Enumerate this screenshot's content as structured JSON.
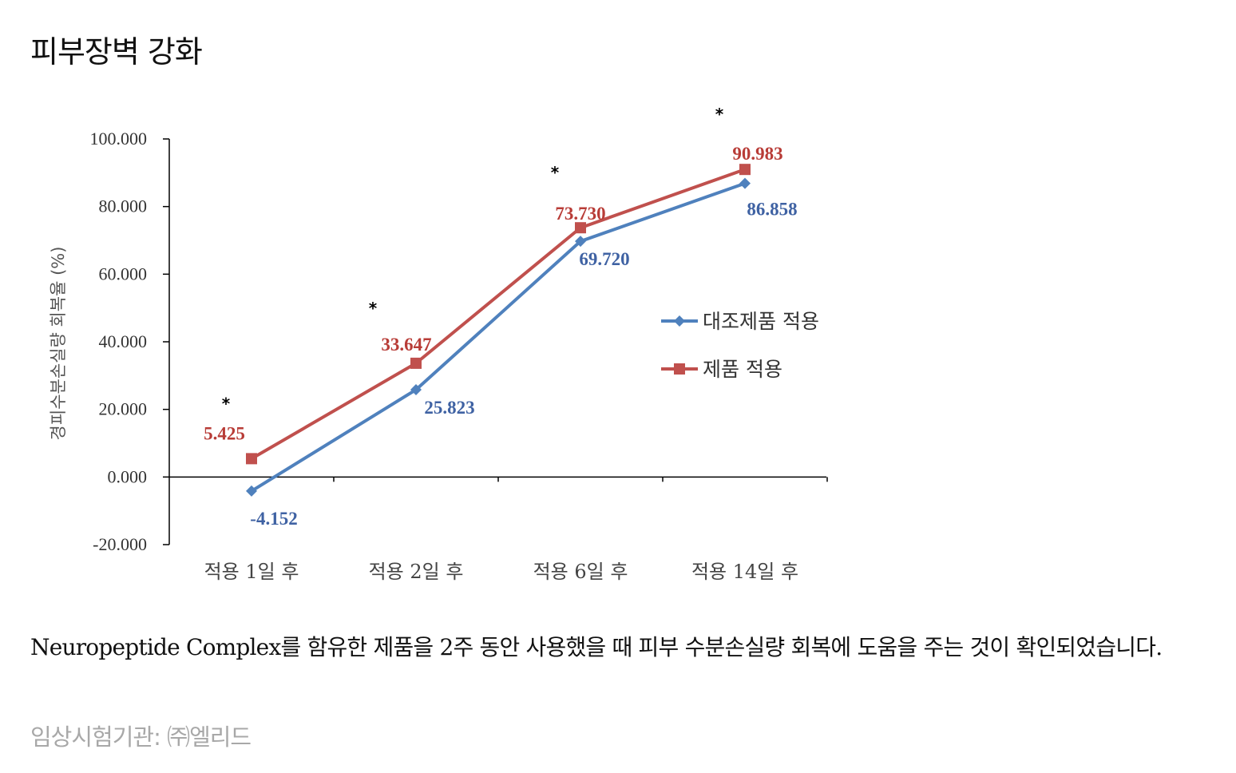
{
  "title": "피부장벽 강화",
  "caption": "Neuropeptide Complex를 함유한 제품을 2주 동안 사용했을 때 피부 수분손실량 회복에 도움을 주는 것이 확인되었습니다.",
  "source": "임상시험기관: ㈜엘리드",
  "chart_data": {
    "type": "line",
    "categories": [
      "적용 1일 후",
      "적용 2일 후",
      "적용 6일 후",
      "적용 14일 후"
    ],
    "ylabel": "경피수분손실량 회복율 (%)",
    "ylim": [
      -20,
      100
    ],
    "yticks": [
      100,
      80,
      60,
      40,
      20,
      0,
      -20
    ],
    "ytick_labels": [
      "100.000",
      "80.000",
      "60.000",
      "40.000",
      "20.000",
      "0.000",
      "-20.000"
    ],
    "legend_position": "right",
    "significance_marker": "*",
    "series": [
      {
        "name": "대조제품 적용",
        "values": [
          -4.152,
          25.823,
          69.72,
          86.858
        ],
        "value_labels": [
          "-4.152",
          "25.823",
          "69.720",
          "86.858"
        ],
        "color": "#4f81bd",
        "marker": "diamond"
      },
      {
        "name": "제품 적용",
        "values": [
          5.425,
          33.647,
          73.73,
          90.983
        ],
        "value_labels": [
          "5.425",
          "33.647",
          "73.730",
          "90.983"
        ],
        "color": "#c0504d",
        "marker": "square"
      }
    ]
  }
}
